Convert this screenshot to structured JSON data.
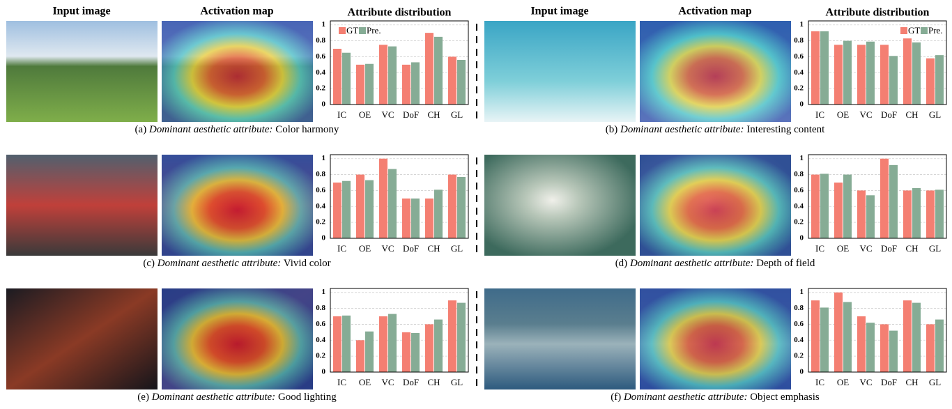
{
  "headers": [
    {
      "input": "Input image",
      "activation": "Activation map",
      "distribution": "Attribute distribution"
    },
    {
      "input": "Input image",
      "activation": "Activation map",
      "distribution": "Attribute distribution"
    }
  ],
  "captions": [
    {
      "label": "(a)",
      "emphasis": "Dominant aesthetic attribute:",
      "attribute": "Color harmony"
    },
    {
      "label": "(b)",
      "emphasis": "Dominant aesthetic attribute:",
      "attribute": "Interesting content"
    },
    {
      "label": "(c)",
      "emphasis": "Dominant aesthetic attribute:",
      "attribute": "Vivid color"
    },
    {
      "label": "(d)",
      "emphasis": "Dominant aesthetic attribute:",
      "attribute": "Depth of field"
    },
    {
      "label": "(e)",
      "emphasis": "Dominant aesthetic attribute:",
      "attribute": "Good lighting"
    },
    {
      "label": "(f)",
      "emphasis": "Dominant aesthetic attribute:",
      "attribute": "Object emphasis"
    }
  ],
  "chart_data": [
    {
      "type": "bar",
      "categories": [
        "IC",
        "OE",
        "VC",
        "DoF",
        "CH",
        "GL"
      ],
      "series": [
        {
          "name": "GT",
          "color": "#f47f72",
          "values": [
            0.7,
            0.5,
            0.75,
            0.5,
            0.9,
            0.6
          ]
        },
        {
          "name": "Pre.",
          "color": "#86ac95",
          "values": [
            0.65,
            0.51,
            0.73,
            0.53,
            0.85,
            0.56
          ]
        }
      ],
      "ylim": [
        0,
        1.05
      ],
      "yticks": [
        0,
        0.2,
        0.4,
        0.6,
        0.8,
        1
      ],
      "grid": true,
      "legend": "upper left"
    },
    {
      "type": "bar",
      "categories": [
        "IC",
        "OE",
        "VC",
        "DoF",
        "CH",
        "GL"
      ],
      "series": [
        {
          "name": "GT",
          "color": "#f47f72",
          "values": [
            0.92,
            0.75,
            0.75,
            0.75,
            0.83,
            0.58
          ]
        },
        {
          "name": "Pre.",
          "color": "#86ac95",
          "values": [
            0.92,
            0.8,
            0.79,
            0.61,
            0.78,
            0.62
          ]
        }
      ],
      "ylim": [
        0,
        1.05
      ],
      "yticks": [
        0,
        0.2,
        0.4,
        0.6,
        0.8,
        1
      ],
      "grid": true,
      "legend": "upper right"
    },
    {
      "type": "bar",
      "categories": [
        "IC",
        "OE",
        "VC",
        "DoF",
        "CH",
        "GL"
      ],
      "series": [
        {
          "color": "#f47f72",
          "values": [
            0.7,
            0.8,
            1.0,
            0.5,
            0.5,
            0.8
          ]
        },
        {
          "color": "#86ac95",
          "values": [
            0.72,
            0.73,
            0.87,
            0.5,
            0.61,
            0.77
          ]
        }
      ],
      "ylim": [
        0,
        1.05
      ],
      "yticks": [
        0,
        0.2,
        0.4,
        0.6,
        0.8,
        1
      ],
      "grid": true
    },
    {
      "type": "bar",
      "categories": [
        "IC",
        "OE",
        "VC",
        "DoF",
        "CH",
        "GL"
      ],
      "series": [
        {
          "color": "#f47f72",
          "values": [
            0.8,
            0.7,
            0.6,
            1.0,
            0.6,
            0.6
          ]
        },
        {
          "color": "#86ac95",
          "values": [
            0.81,
            0.8,
            0.54,
            0.92,
            0.63,
            0.61
          ]
        }
      ],
      "ylim": [
        0,
        1.05
      ],
      "yticks": [
        0,
        0.2,
        0.4,
        0.6,
        0.8,
        1
      ],
      "grid": true
    },
    {
      "type": "bar",
      "categories": [
        "IC",
        "OE",
        "VC",
        "DoF",
        "CH",
        "GL"
      ],
      "series": [
        {
          "color": "#f47f72",
          "values": [
            0.7,
            0.4,
            0.7,
            0.5,
            0.6,
            0.9
          ]
        },
        {
          "color": "#86ac95",
          "values": [
            0.71,
            0.51,
            0.73,
            0.49,
            0.66,
            0.87
          ]
        }
      ],
      "ylim": [
        0,
        1.05
      ],
      "yticks": [
        0,
        0.2,
        0.4,
        0.6,
        0.8,
        1
      ],
      "grid": true
    },
    {
      "type": "bar",
      "categories": [
        "IC",
        "OE",
        "VC",
        "DoF",
        "CH",
        "GL"
      ],
      "series": [
        {
          "color": "#f47f72",
          "values": [
            0.9,
            1.0,
            0.7,
            0.6,
            0.9,
            0.6
          ]
        },
        {
          "color": "#86ac95",
          "values": [
            0.81,
            0.88,
            0.62,
            0.52,
            0.87,
            0.66
          ]
        }
      ],
      "ylim": [
        0,
        1.05
      ],
      "yticks": [
        0,
        0.2,
        0.4,
        0.6,
        0.8,
        1
      ],
      "grid": true
    }
  ]
}
